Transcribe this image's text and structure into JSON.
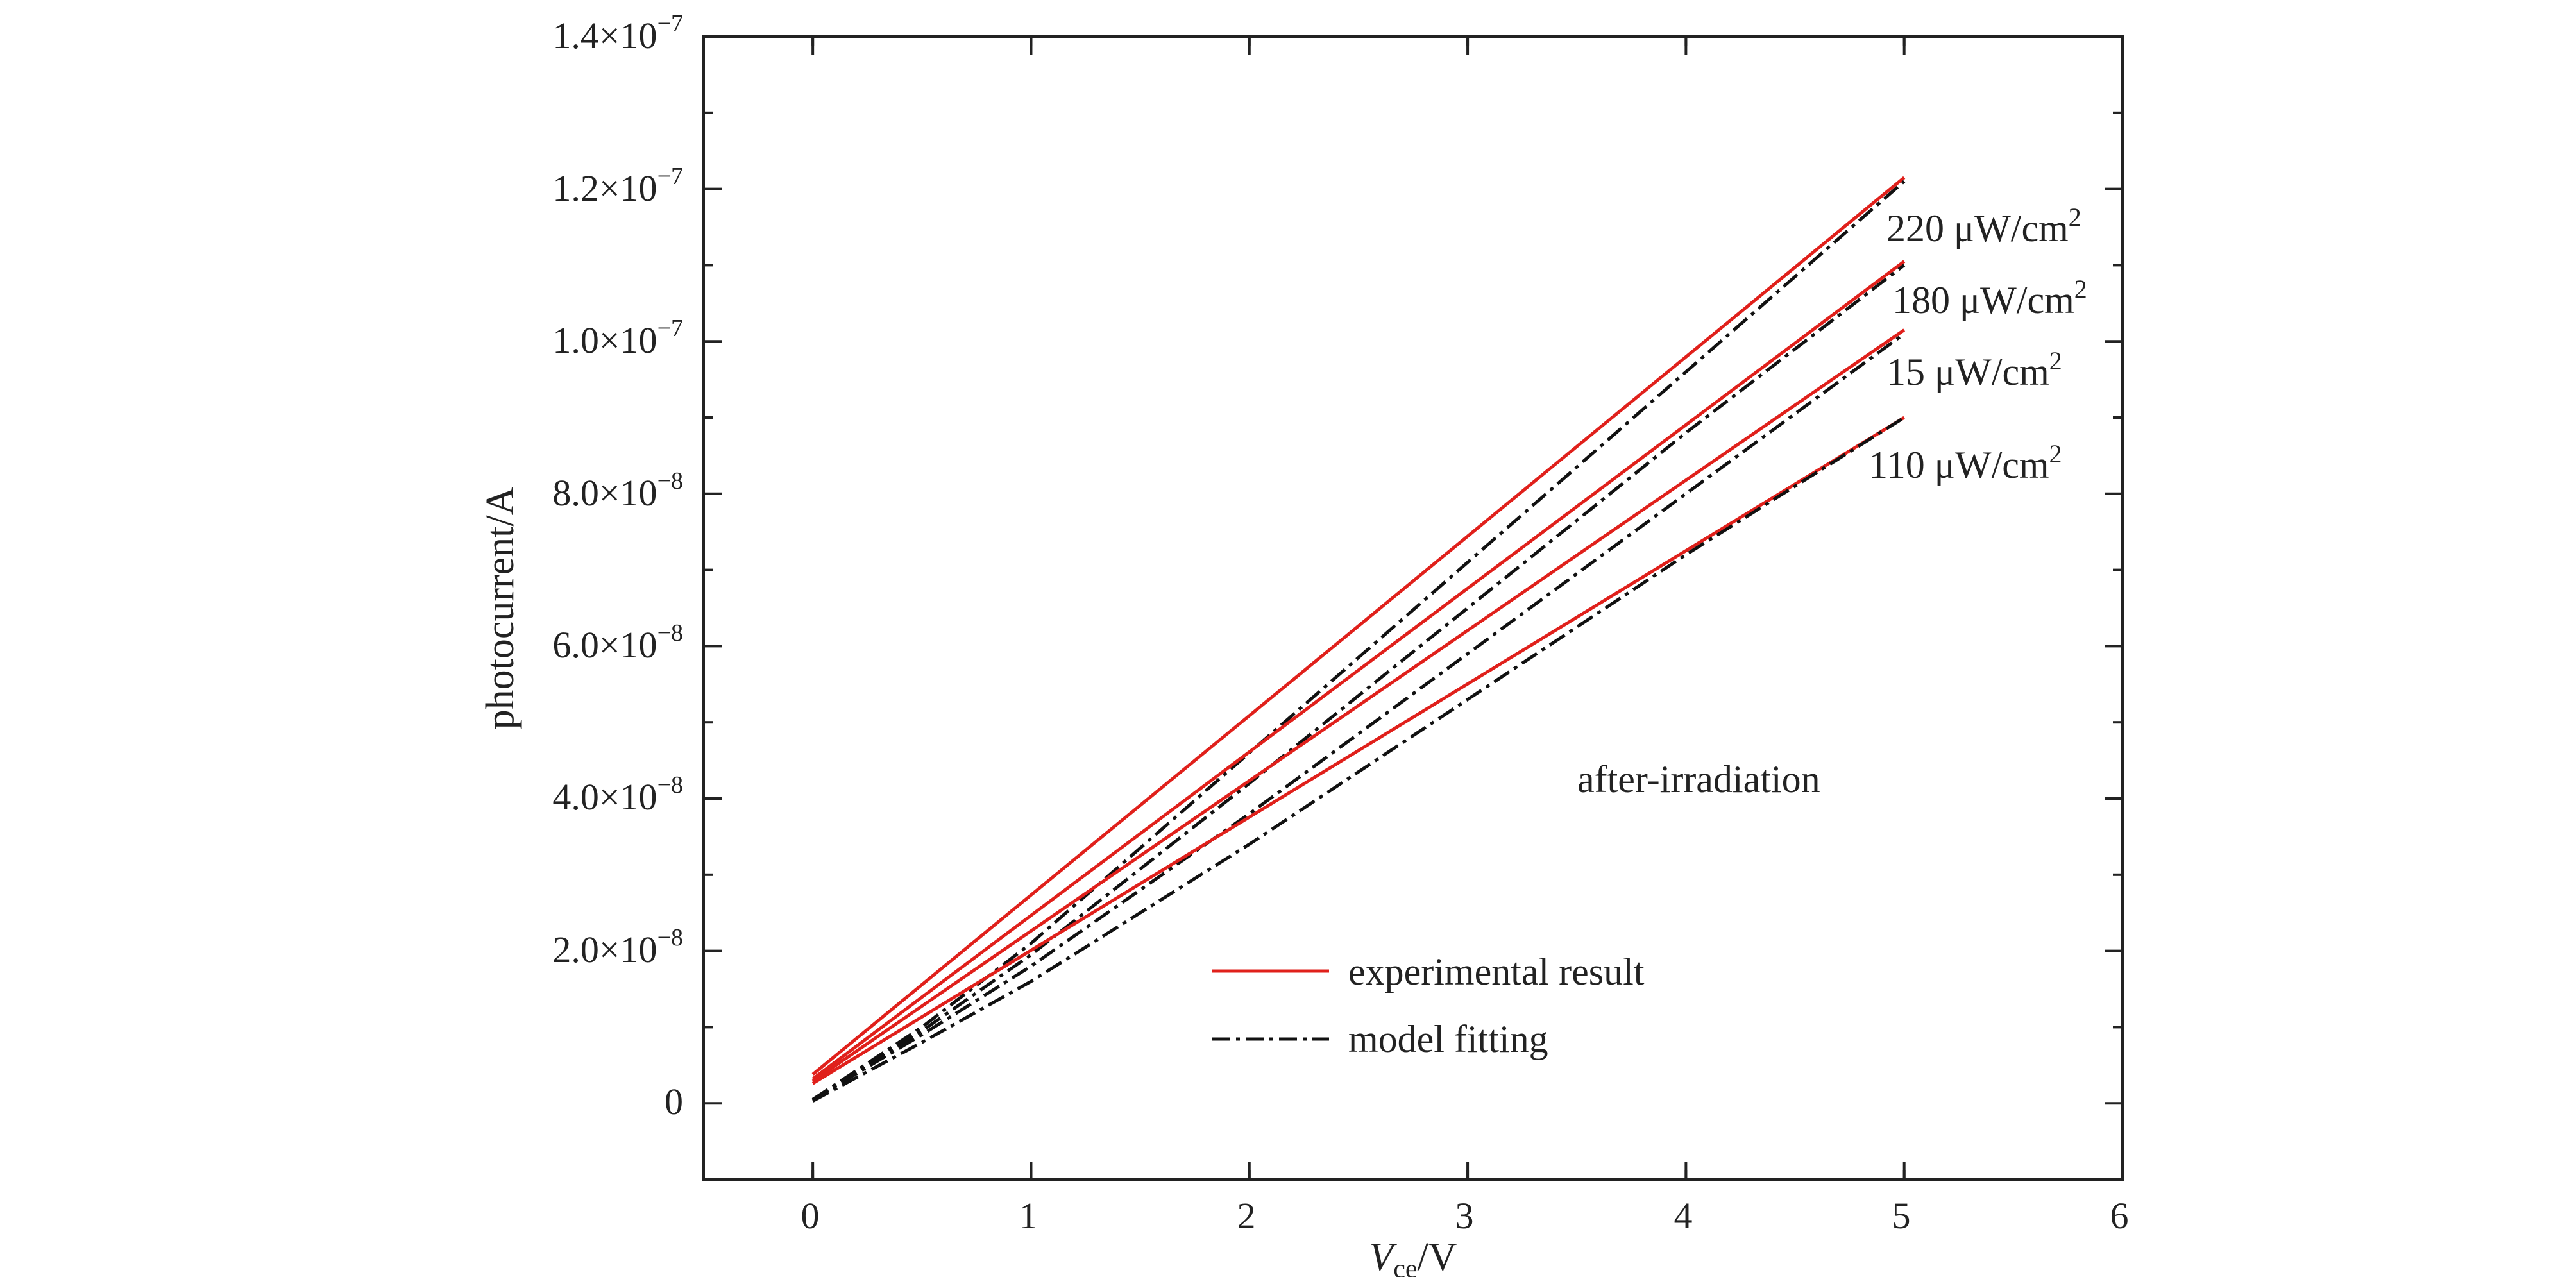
{
  "chart_data": {
    "type": "line",
    "title": "",
    "xlabel": {
      "main": "V",
      "sub": "ce",
      "unit": "/V"
    },
    "ylabel": "photocurrent/A",
    "xlim": [
      -0.5,
      6
    ],
    "ylim": [
      -1e-08,
      1.4e-07
    ],
    "x_ticks": [
      0,
      1,
      2,
      3,
      4,
      5,
      6
    ],
    "x_tick_labels": [
      "0",
      "1",
      "2",
      "3",
      "4",
      "5",
      "6"
    ],
    "y_ticks": [
      0,
      2e-08,
      4e-08,
      6e-08,
      8e-08,
      1e-07,
      1.2e-07,
      1.4e-07
    ],
    "y_tick_labels": [
      {
        "mant": "0",
        "exp": ""
      },
      {
        "mant": "2.0×10",
        "exp": "−8"
      },
      {
        "mant": "4.0×10",
        "exp": "−8"
      },
      {
        "mant": "6.0×10",
        "exp": "−8"
      },
      {
        "mant": "8.0×10",
        "exp": "−8"
      },
      {
        "mant": "1.0×10",
        "exp": "−7"
      },
      {
        "mant": "1.2×10",
        "exp": "−7"
      },
      {
        "mant": "1.4×10",
        "exp": "−7"
      }
    ],
    "grid": false,
    "legend_position": "bottom-center",
    "legend": [
      {
        "label": "experimental result",
        "style": "solid",
        "color": "#e0201b"
      },
      {
        "label": "model fitting",
        "style": "dash-dot",
        "color": "#111111"
      }
    ],
    "annotation": "after-irradiation",
    "curve_labels": [
      {
        "text": "220 μW/cm",
        "sup": "2"
      },
      {
        "text": "180 μW/cm",
        "sup": "2"
      },
      {
        "text": "15 μW/cm",
        "sup": "2"
      },
      {
        "text": "110 μW/cm",
        "sup": "2"
      }
    ],
    "series": [
      {
        "group": "220 μW/cm2",
        "kind": "experimental result",
        "color": "#e0201b",
        "x": [
          0,
          5
        ],
        "y": [
          3.8e-09,
          1.215e-07
        ]
      },
      {
        "group": "220 μW/cm2",
        "kind": "model fitting",
        "color": "#111111",
        "x": [
          0,
          0.5,
          1,
          2,
          3,
          4,
          5
        ],
        "y": [
          5e-10,
          1e-08,
          2.1e-08,
          4.6e-08,
          7.1e-08,
          9.6e-08,
          1.21e-07
        ]
      },
      {
        "group": "180 μW/cm2",
        "kind": "experimental result",
        "color": "#e0201b",
        "x": [
          0,
          5
        ],
        "y": [
          3.2e-09,
          1.105e-07
        ]
      },
      {
        "group": "180 μW/cm2",
        "kind": "model fitting",
        "color": "#111111",
        "x": [
          0,
          0.5,
          1,
          2,
          3,
          4,
          5
        ],
        "y": [
          5e-10,
          9.5e-09,
          1.95e-08,
          4.2e-08,
          6.5e-08,
          8.8e-08,
          1.1e-07
        ]
      },
      {
        "group": "15 μW/cm2",
        "kind": "experimental result",
        "color": "#e0201b",
        "x": [
          0,
          5
        ],
        "y": [
          2.9e-09,
          1.015e-07
        ]
      },
      {
        "group": "15 μW/cm2",
        "kind": "model fitting",
        "color": "#111111",
        "x": [
          0,
          0.5,
          1,
          2,
          3,
          4,
          5
        ],
        "y": [
          5e-10,
          9e-09,
          1.8e-08,
          3.8e-08,
          5.9e-08,
          8e-08,
          1.01e-07
        ]
      },
      {
        "group": "110 μW/cm2",
        "kind": "experimental result",
        "color": "#e0201b",
        "x": [
          0,
          5
        ],
        "y": [
          2.6e-09,
          9e-08
        ]
      },
      {
        "group": "110 μW/cm2",
        "kind": "model fitting",
        "color": "#111111",
        "x": [
          0,
          0.5,
          1,
          2,
          3,
          4,
          5
        ],
        "y": [
          3e-10,
          8e-09,
          1.6e-08,
          3.4e-08,
          5.3e-08,
          7.2e-08,
          9e-08
        ]
      }
    ]
  }
}
